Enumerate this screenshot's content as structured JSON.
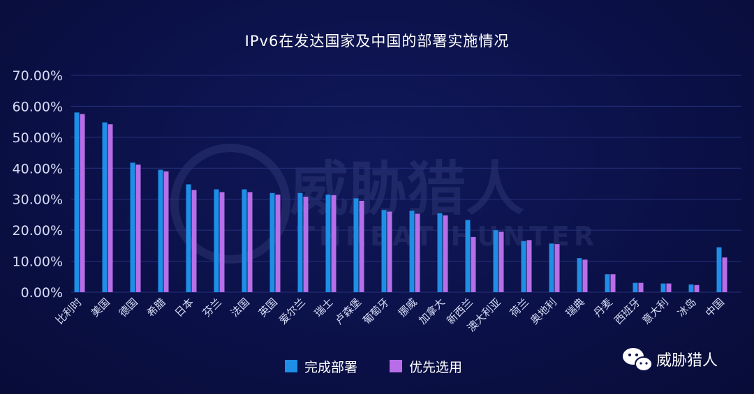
{
  "colors": {
    "completed": "#1e8ee6",
    "preferred": "#b86ee8",
    "grid": "#26307a",
    "background": "#0b1148"
  },
  "watermark": {
    "text_cn": "威胁猎人",
    "text_en": "THREAT HUNTER"
  },
  "brand": {
    "icon": "wechat-icon",
    "name": "威胁猎人"
  },
  "chart_data": {
    "type": "bar",
    "title": "IPv6在发达国家及中国的部署实施情况",
    "xlabel": "",
    "ylabel": "",
    "ylim": [
      0,
      70
    ],
    "yticks": [
      "0.00%",
      "10.00%",
      "20.00%",
      "30.00%",
      "40.00%",
      "50.00%",
      "60.00%",
      "70.00%"
    ],
    "grid": true,
    "legend_position": "bottom-center",
    "categories": [
      "比利时",
      "美国",
      "德国",
      "希腊",
      "日本",
      "芬兰",
      "法国",
      "英国",
      "爱尔兰",
      "瑞士",
      "卢森堡",
      "葡萄牙",
      "挪威",
      "加拿大",
      "新西兰",
      "澳大利亚",
      "荷兰",
      "奥地利",
      "瑞典",
      "丹麦",
      "西班牙",
      "意大利",
      "冰岛",
      "中国"
    ],
    "series": [
      {
        "name": "完成部署",
        "values": [
          58,
          54.8,
          41.8,
          39.5,
          34.8,
          33.2,
          33.2,
          32,
          32,
          31.5,
          30.3,
          26.5,
          26.3,
          25.5,
          23.3,
          20,
          16.5,
          15.7,
          11,
          5.8,
          3,
          2.8,
          2.5,
          14.5
        ]
      },
      {
        "name": "优先选用",
        "values": [
          57.5,
          54.2,
          41.2,
          39,
          33,
          32.3,
          32.3,
          31.5,
          30.8,
          31.3,
          29.5,
          26,
          25.3,
          24.8,
          17.8,
          19.5,
          16.8,
          15.5,
          10.5,
          5.8,
          3,
          2.8,
          2.3,
          11.2
        ]
      }
    ]
  }
}
